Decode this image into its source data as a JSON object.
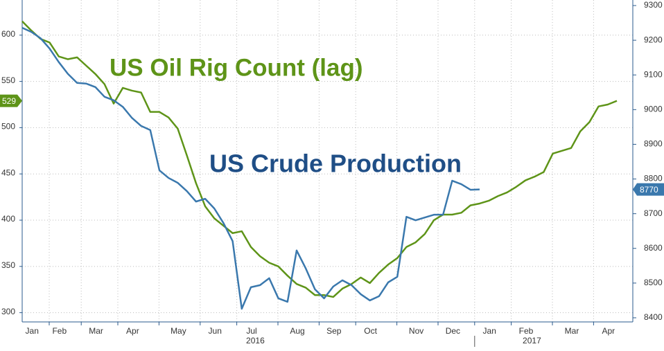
{
  "chart_data": {
    "type": "line",
    "categories": [
      null,
      "Jan",
      null,
      null,
      "Feb",
      null,
      null,
      null,
      "Mar",
      null,
      null,
      null,
      "Apr",
      null,
      null,
      null,
      null,
      "May",
      null,
      null,
      null,
      "Jun",
      null,
      null,
      null,
      "Jul",
      null,
      null,
      null,
      null,
      "Aug",
      null,
      null,
      null,
      "Sep",
      null,
      null,
      null,
      "Oct",
      null,
      null,
      null,
      null,
      "Nov",
      null,
      null,
      null,
      "Dec",
      null,
      null,
      null,
      "Jan",
      null,
      null,
      null,
      "Feb",
      null,
      null,
      null,
      null,
      "Mar",
      null,
      null,
      null,
      "Apr",
      null
    ],
    "year_labels": [
      "2016",
      "2017"
    ],
    "series": [
      {
        "name": "US Oil Rig Count (lag)",
        "color": "#5e9418",
        "axis": "y",
        "values": [
          615,
          605,
          596,
          592,
          577,
          574,
          576,
          567,
          558,
          547,
          526,
          543,
          540,
          538,
          517,
          517,
          511,
          499,
          470,
          440,
          415,
          402,
          394,
          386,
          388,
          371,
          361,
          354,
          350,
          340,
          331,
          327,
          319,
          319,
          317,
          326,
          331,
          338,
          332,
          343,
          352,
          359,
          371,
          376,
          385,
          400,
          406,
          406,
          408,
          416,
          418,
          421,
          426,
          430,
          436,
          443,
          447,
          452,
          472,
          475,
          478,
          496,
          506,
          523,
          525,
          529
        ]
      },
      {
        "name": "US Crude Production",
        "color": "#3a78ad",
        "axis": "y2",
        "text_color": "#1f4e86",
        "values": [
          9236,
          9224,
          9206,
          9176,
          9137,
          9103,
          9077,
          9075,
          9065,
          9037,
          9027,
          9008,
          8976,
          8953,
          8941,
          8825,
          8803,
          8789,
          8765,
          8735,
          8743,
          8715,
          8673,
          8621,
          8426,
          8488,
          8494,
          8514,
          8456,
          8446,
          8594,
          8542,
          8482,
          8456,
          8490,
          8508,
          8494,
          8468,
          8450,
          8462,
          8502,
          8518,
          8691,
          8681,
          8689,
          8697,
          8697,
          8795,
          8785,
          8769,
          8770,
          null,
          null,
          null,
          null,
          null,
          null,
          null,
          null,
          null,
          null,
          null,
          null,
          null,
          null,
          null
        ]
      }
    ],
    "ylim": [
      290,
      638
    ],
    "yticks": [
      300,
      350,
      400,
      450,
      500,
      550,
      600
    ],
    "y2lim": [
      8388,
      9316
    ],
    "y2ticks": [
      8400,
      8500,
      8600,
      8700,
      8800,
      8900,
      9000,
      9100,
      9200,
      9300
    ],
    "grid": true
  }
}
